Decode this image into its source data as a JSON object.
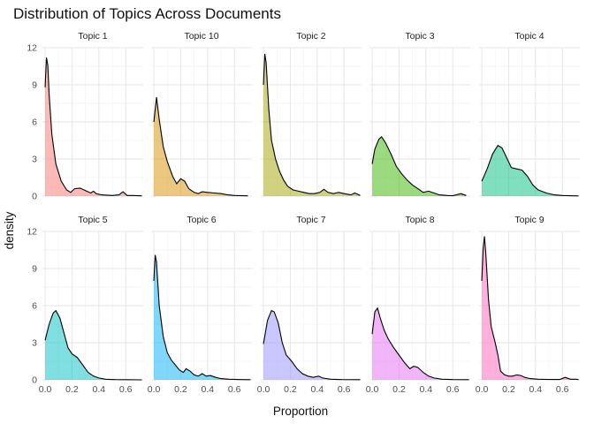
{
  "chart_data": {
    "type": "area",
    "title": "Distribution of Topics Across Documents",
    "xlabel": "Proportion",
    "ylabel": "density",
    "xlim": [
      -0.02,
      0.73
    ],
    "ylim": [
      0,
      12
    ],
    "x_ticks": [
      0.0,
      0.2,
      0.4,
      0.6
    ],
    "x_tick_labels": [
      "0.0",
      "0.2",
      "0.4",
      "0.6"
    ],
    "y_ticks": [
      0,
      3,
      6,
      9,
      12
    ],
    "y_tick_labels": [
      "0",
      "3",
      "6",
      "9",
      "12"
    ],
    "grid": true,
    "legend": "none",
    "facets": [
      {
        "name": "Topic 1",
        "color": "#F8766D",
        "points": [
          [
            0,
            8.8
          ],
          [
            0.01,
            11.2
          ],
          [
            0.02,
            10.6
          ],
          [
            0.03,
            8.2
          ],
          [
            0.05,
            5.0
          ],
          [
            0.08,
            2.6
          ],
          [
            0.12,
            1.2
          ],
          [
            0.16,
            0.5
          ],
          [
            0.19,
            0.3
          ],
          [
            0.22,
            0.6
          ],
          [
            0.26,
            0.65
          ],
          [
            0.3,
            0.45
          ],
          [
            0.34,
            0.25
          ],
          [
            0.36,
            0.4
          ],
          [
            0.38,
            0.2
          ],
          [
            0.42,
            0.1
          ],
          [
            0.5,
            0.05
          ],
          [
            0.55,
            0.1
          ],
          [
            0.58,
            0.35
          ],
          [
            0.61,
            0.05
          ],
          [
            0.65,
            0.05
          ],
          [
            0.72,
            0.02
          ]
        ]
      },
      {
        "name": "Topic 10",
        "color": "#D89000",
        "points": [
          [
            0,
            6.0
          ],
          [
            0.02,
            8.0
          ],
          [
            0.04,
            6.2
          ],
          [
            0.07,
            4.0
          ],
          [
            0.1,
            2.8
          ],
          [
            0.14,
            1.6
          ],
          [
            0.17,
            1.0
          ],
          [
            0.2,
            1.4
          ],
          [
            0.23,
            1.2
          ],
          [
            0.26,
            0.6
          ],
          [
            0.3,
            0.3
          ],
          [
            0.33,
            0.2
          ],
          [
            0.36,
            0.35
          ],
          [
            0.4,
            0.3
          ],
          [
            0.45,
            0.25
          ],
          [
            0.5,
            0.2
          ],
          [
            0.55,
            0.1
          ],
          [
            0.6,
            0.05
          ],
          [
            0.7,
            0.02
          ]
        ]
      },
      {
        "name": "Topic 2",
        "color": "#A3A500",
        "points": [
          [
            0,
            9.0
          ],
          [
            0.01,
            11.5
          ],
          [
            0.02,
            10.8
          ],
          [
            0.04,
            7.0
          ],
          [
            0.06,
            4.5
          ],
          [
            0.09,
            3.0
          ],
          [
            0.12,
            2.0
          ],
          [
            0.15,
            1.3
          ],
          [
            0.18,
            0.8
          ],
          [
            0.22,
            0.5
          ],
          [
            0.26,
            0.4
          ],
          [
            0.3,
            0.3
          ],
          [
            0.34,
            0.2
          ],
          [
            0.38,
            0.2
          ],
          [
            0.42,
            0.3
          ],
          [
            0.45,
            0.55
          ],
          [
            0.48,
            0.3
          ],
          [
            0.52,
            0.2
          ],
          [
            0.56,
            0.3
          ],
          [
            0.6,
            0.2
          ],
          [
            0.65,
            0.1
          ],
          [
            0.68,
            0.25
          ],
          [
            0.72,
            0.05
          ]
        ]
      },
      {
        "name": "Topic 3",
        "color": "#39B600",
        "points": [
          [
            0,
            2.6
          ],
          [
            0.02,
            3.8
          ],
          [
            0.05,
            4.6
          ],
          [
            0.07,
            4.8
          ],
          [
            0.1,
            4.3
          ],
          [
            0.14,
            3.4
          ],
          [
            0.18,
            2.4
          ],
          [
            0.22,
            1.8
          ],
          [
            0.26,
            1.3
          ],
          [
            0.3,
            0.9
          ],
          [
            0.34,
            0.6
          ],
          [
            0.38,
            0.3
          ],
          [
            0.42,
            0.4
          ],
          [
            0.46,
            0.25
          ],
          [
            0.5,
            0.1
          ],
          [
            0.56,
            0.05
          ],
          [
            0.6,
            0.03
          ],
          [
            0.66,
            0.2
          ],
          [
            0.7,
            0.05
          ]
        ]
      },
      {
        "name": "Topic 4",
        "color": "#00BF7D",
        "points": [
          [
            0,
            1.2
          ],
          [
            0.04,
            2.2
          ],
          [
            0.08,
            3.4
          ],
          [
            0.12,
            4.1
          ],
          [
            0.15,
            3.9
          ],
          [
            0.19,
            3.0
          ],
          [
            0.22,
            2.3
          ],
          [
            0.26,
            2.2
          ],
          [
            0.3,
            2.1
          ],
          [
            0.34,
            1.6
          ],
          [
            0.38,
            0.9
          ],
          [
            0.42,
            0.5
          ],
          [
            0.48,
            0.25
          ],
          [
            0.54,
            0.1
          ],
          [
            0.6,
            0.05
          ],
          [
            0.66,
            0.03
          ],
          [
            0.72,
            0.01
          ]
        ]
      },
      {
        "name": "Topic 5",
        "color": "#00BFC4",
        "points": [
          [
            0,
            3.2
          ],
          [
            0.03,
            4.5
          ],
          [
            0.06,
            5.4
          ],
          [
            0.08,
            5.6
          ],
          [
            0.11,
            5.0
          ],
          [
            0.14,
            3.8
          ],
          [
            0.17,
            2.6
          ],
          [
            0.2,
            2.1
          ],
          [
            0.24,
            1.8
          ],
          [
            0.28,
            1.2
          ],
          [
            0.32,
            0.6
          ],
          [
            0.36,
            0.3
          ],
          [
            0.4,
            0.15
          ],
          [
            0.45,
            0.05
          ],
          [
            0.52,
            0.02
          ],
          [
            0.6,
            0.01
          ],
          [
            0.72,
            0
          ]
        ]
      },
      {
        "name": "Topic 6",
        "color": "#00B0F6",
        "points": [
          [
            0,
            8.0
          ],
          [
            0.01,
            10.1
          ],
          [
            0.02,
            9.5
          ],
          [
            0.04,
            6.0
          ],
          [
            0.07,
            3.5
          ],
          [
            0.1,
            2.2
          ],
          [
            0.13,
            1.6
          ],
          [
            0.16,
            1.2
          ],
          [
            0.19,
            0.8
          ],
          [
            0.22,
            0.6
          ],
          [
            0.24,
            0.9
          ],
          [
            0.27,
            0.7
          ],
          [
            0.3,
            0.4
          ],
          [
            0.33,
            0.3
          ],
          [
            0.36,
            0.5
          ],
          [
            0.39,
            0.3
          ],
          [
            0.42,
            0.35
          ],
          [
            0.46,
            0.2
          ],
          [
            0.5,
            0.1
          ],
          [
            0.56,
            0.05
          ],
          [
            0.65,
            0.02
          ],
          [
            0.72,
            0.01
          ]
        ]
      },
      {
        "name": "Topic 7",
        "color": "#9590FF",
        "points": [
          [
            0,
            2.9
          ],
          [
            0.03,
            4.8
          ],
          [
            0.06,
            5.6
          ],
          [
            0.08,
            5.5
          ],
          [
            0.11,
            4.6
          ],
          [
            0.14,
            3.0
          ],
          [
            0.17,
            2.0
          ],
          [
            0.21,
            1.5
          ],
          [
            0.25,
            0.9
          ],
          [
            0.29,
            0.5
          ],
          [
            0.33,
            0.3
          ],
          [
            0.37,
            0.2
          ],
          [
            0.41,
            0.3
          ],
          [
            0.44,
            0.15
          ],
          [
            0.5,
            0.05
          ],
          [
            0.58,
            0.02
          ],
          [
            0.72,
            0.01
          ]
        ]
      },
      {
        "name": "Topic 8",
        "color": "#E76BF3",
        "points": [
          [
            0,
            3.7
          ],
          [
            0.02,
            5.5
          ],
          [
            0.04,
            5.8
          ],
          [
            0.06,
            5.0
          ],
          [
            0.09,
            4.0
          ],
          [
            0.12,
            3.3
          ],
          [
            0.16,
            2.6
          ],
          [
            0.2,
            2.0
          ],
          [
            0.24,
            1.4
          ],
          [
            0.28,
            0.9
          ],
          [
            0.31,
            1.1
          ],
          [
            0.34,
            1.0
          ],
          [
            0.38,
            0.6
          ],
          [
            0.42,
            0.3
          ],
          [
            0.46,
            0.15
          ],
          [
            0.52,
            0.05
          ],
          [
            0.6,
            0.02
          ],
          [
            0.72,
            0.01
          ]
        ]
      },
      {
        "name": "Topic 9",
        "color": "#FF62BC",
        "points": [
          [
            0,
            8.0
          ],
          [
            0.01,
            10.6
          ],
          [
            0.02,
            11.6
          ],
          [
            0.03,
            10.2
          ],
          [
            0.05,
            6.5
          ],
          [
            0.07,
            4.3
          ],
          [
            0.1,
            3.0
          ],
          [
            0.12,
            2.0
          ],
          [
            0.14,
            0.7
          ],
          [
            0.17,
            0.4
          ],
          [
            0.2,
            0.3
          ],
          [
            0.23,
            0.3
          ],
          [
            0.26,
            0.4
          ],
          [
            0.29,
            0.35
          ],
          [
            0.32,
            0.2
          ],
          [
            0.36,
            0.1
          ],
          [
            0.42,
            0.05
          ],
          [
            0.5,
            0.03
          ],
          [
            0.58,
            0.03
          ],
          [
            0.62,
            0.2
          ],
          [
            0.66,
            0.05
          ],
          [
            0.7,
            0.05
          ],
          [
            0.72,
            0.02
          ]
        ]
      }
    ]
  }
}
